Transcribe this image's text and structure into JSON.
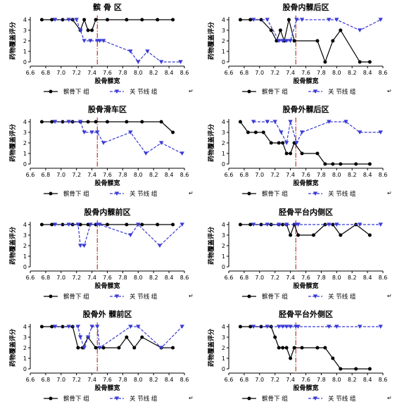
{
  "chart_data": [
    {
      "type": "line",
      "title": "髌 骨 区",
      "xlabel": "股骨髁宽",
      "ylabel": "药物覆盖评分",
      "xlim": [
        6.6,
        8.6
      ],
      "ylim": [
        0,
        4
      ],
      "xticks": [
        "6.6",
        "6.8",
        "7.0",
        "7.2",
        "7.4",
        "7.6",
        "7.8",
        "8.0",
        "8.2",
        "8.4",
        "8.6"
      ],
      "yticks": [
        "0",
        "1",
        "2",
        "3",
        "4"
      ],
      "vline_x": 7.47,
      "series": [
        {
          "name": "髌骨下 组",
          "x": [
            6.75,
            6.88,
            7.02,
            7.15,
            7.25,
            7.3,
            7.35,
            7.4,
            7.45,
            7.6,
            7.85,
            8.05,
            8.25,
            8.45
          ],
          "y": [
            4,
            4,
            4,
            4,
            3,
            4,
            3,
            3,
            4,
            4,
            4,
            4,
            4,
            4
          ]
        },
        {
          "name": "关 节线 组",
          "x": [
            6.92,
            7.1,
            7.2,
            7.25,
            7.3,
            7.38,
            7.47,
            7.5,
            7.55,
            7.9,
            8.0,
            8.12,
            8.3,
            8.55
          ],
          "y": [
            4,
            4,
            4,
            3,
            2,
            2,
            2,
            2,
            2,
            1,
            0,
            1,
            0,
            0
          ]
        }
      ]
    },
    {
      "type": "line",
      "title": "股骨内髁后区",
      "xlabel": "股骨髁宽",
      "ylabel": "药物覆盖评分",
      "xlim": [
        6.6,
        8.6
      ],
      "ylim": [
        0,
        4
      ],
      "xticks": [
        "6.6",
        "6.8",
        "7.0",
        "7.2",
        "7.4",
        "7.6",
        "7.8",
        "8.0",
        "8.2",
        "8.4",
        "8.6"
      ],
      "yticks": [
        "0",
        "1",
        "2",
        "3",
        "4"
      ],
      "vline_x": 7.47,
      "series": [
        {
          "name": "髌骨下 组",
          "x": [
            6.75,
            6.88,
            7.02,
            7.15,
            7.22,
            7.27,
            7.32,
            7.38,
            7.45,
            7.75,
            7.85,
            7.95,
            8.05,
            8.3,
            8.43
          ],
          "y": [
            4,
            4,
            4,
            3,
            2,
            3,
            2,
            4,
            2,
            2,
            0,
            2,
            3,
            0,
            0
          ]
        },
        {
          "name": "关 节线 组",
          "x": [
            6.92,
            7.1,
            7.25,
            7.3,
            7.35,
            7.4,
            7.48,
            7.55,
            7.9,
            8.0,
            8.3,
            8.57
          ],
          "y": [
            4,
            4,
            2,
            2,
            2,
            2,
            4,
            4,
            4,
            4,
            3,
            4
          ]
        }
      ]
    },
    {
      "type": "line",
      "title": "股骨滑车区",
      "xlabel": "股骨髁宽",
      "ylabel": "药物覆盖评分",
      "xlim": [
        6.6,
        8.6
      ],
      "ylim": [
        0,
        4
      ],
      "xticks": [
        "6.6",
        "6.8",
        "7.0",
        "7.2",
        "7.4",
        "7.6",
        "7.8",
        "8.0",
        "8.2",
        "8.4",
        "8.6"
      ],
      "yticks": [
        "0",
        "1",
        "2",
        "3",
        "4"
      ],
      "vline_x": 7.47,
      "series": [
        {
          "name": "髌骨下 组",
          "x": [
            6.75,
            6.88,
            7.02,
            7.15,
            7.25,
            7.35,
            7.45,
            7.6,
            7.85,
            8.05,
            8.3,
            8.45
          ],
          "y": [
            4,
            4,
            4,
            4,
            4,
            4,
            4,
            4,
            4,
            4,
            4,
            3
          ]
        },
        {
          "name": "关 节线 组",
          "x": [
            6.92,
            7.1,
            7.25,
            7.3,
            7.4,
            7.47,
            7.55,
            7.9,
            8.1,
            8.3,
            8.57
          ],
          "y": [
            4,
            4,
            4,
            3,
            3,
            3,
            2,
            3,
            1,
            2,
            1
          ]
        }
      ]
    },
    {
      "type": "line",
      "title": "股骨外髁后区",
      "xlabel": "股骨髁宽",
      "ylabel": "药物覆盖评分",
      "xlim": [
        6.6,
        8.6
      ],
      "ylim": [
        0,
        4
      ],
      "xticks": [
        "6.6",
        "6.8",
        "7.0",
        "7.2",
        "7.4",
        "7.6",
        "7.8",
        "8.0",
        "8.2",
        "8.4",
        "8.6"
      ],
      "yticks": [
        "0",
        "1",
        "2",
        "3",
        "4"
      ],
      "vline_x": 7.47,
      "series": [
        {
          "name": "髌骨下 组",
          "x": [
            6.75,
            6.85,
            6.95,
            7.05,
            7.15,
            7.25,
            7.3,
            7.35,
            7.4,
            7.45,
            7.55,
            7.75,
            7.85,
            7.95,
            8.05,
            8.25,
            8.43
          ],
          "y": [
            4,
            3,
            3,
            3,
            2,
            2,
            2,
            1,
            1,
            2,
            1,
            1,
            0,
            0,
            0,
            0,
            0
          ]
        },
        {
          "name": "关 节线 组",
          "x": [
            6.92,
            7.1,
            7.2,
            7.28,
            7.35,
            7.4,
            7.48,
            7.55,
            7.9,
            8.12,
            8.3,
            8.57
          ],
          "y": [
            4,
            4,
            4,
            3,
            2,
            4,
            2,
            3,
            4,
            4,
            3,
            3
          ]
        }
      ]
    },
    {
      "type": "line",
      "title": "股骨内髁前区",
      "xlabel": "股骨髁宽",
      "ylabel": "药物覆盖评分",
      "xlim": [
        6.6,
        8.6
      ],
      "ylim": [
        0,
        4
      ],
      "xticks": [
        "6.6",
        "6.8",
        "7.0",
        "7.2",
        "7.4",
        "7.6",
        "7.8",
        "8.0",
        "8.2",
        "8.4",
        "8.6"
      ],
      "yticks": [
        "0",
        "1",
        "2",
        "3",
        "4"
      ],
      "vline_x": 7.47,
      "series": [
        {
          "name": "髌骨下 组",
          "x": [
            6.75,
            6.88,
            7.02,
            7.15,
            7.25,
            7.35,
            7.45,
            7.6,
            7.85,
            8.05,
            8.25,
            8.45
          ],
          "y": [
            4,
            4,
            4,
            4,
            4,
            4,
            4,
            4,
            4,
            4,
            4,
            4
          ]
        },
        {
          "name": "关 节线 组",
          "x": [
            6.92,
            7.1,
            7.22,
            7.25,
            7.3,
            7.38,
            7.47,
            7.5,
            7.9,
            8.0,
            8.28,
            8.57
          ],
          "y": [
            4,
            4,
            4,
            2,
            2,
            4,
            4,
            4,
            3,
            4,
            2,
            4
          ]
        }
      ]
    },
    {
      "type": "line",
      "title": "胫骨平台内侧区",
      "xlabel": "股骨髁宽",
      "ylabel": "药物覆盖评分",
      "xlim": [
        6.6,
        8.6
      ],
      "ylim": [
        0,
        4
      ],
      "xticks": [
        "6.6",
        "6.8",
        "7.0",
        "7.2",
        "7.4",
        "7.6",
        "7.8",
        "8.0",
        "8.2",
        "8.4",
        "8.6"
      ],
      "yticks": [
        "0",
        "1",
        "2",
        "3",
        "4"
      ],
      "vline_x": 7.47,
      "series": [
        {
          "name": "髌骨下 组",
          "x": [
            6.75,
            6.88,
            7.02,
            7.15,
            7.25,
            7.3,
            7.35,
            7.4,
            7.45,
            7.5,
            7.7,
            7.85,
            7.95,
            8.05,
            8.25,
            8.43
          ],
          "y": [
            4,
            4,
            4,
            4,
            4,
            4,
            4,
            3,
            4,
            3,
            3,
            4,
            4,
            3,
            4,
            3
          ]
        },
        {
          "name": "关 节线 组",
          "x": [
            6.92,
            7.1,
            7.25,
            7.35,
            7.47,
            7.5,
            7.9,
            8.0,
            8.3,
            8.57
          ],
          "y": [
            4,
            4,
            4,
            4,
            4,
            4,
            4,
            4,
            4,
            4
          ]
        }
      ]
    },
    {
      "type": "line",
      "title": "股骨外 髁前区",
      "xlabel": "股骨髁宽",
      "ylabel": "药物覆盖评分",
      "xlim": [
        6.6,
        8.6
      ],
      "ylim": [
        0,
        4
      ],
      "xticks": [
        "6.6",
        "6.8",
        "7.0",
        "7.2",
        "7.4",
        "7.6",
        "7.8",
        "8.0",
        "8.2",
        "8.4",
        "8.6"
      ],
      "yticks": [
        "0",
        "1",
        "2",
        "3",
        "4"
      ],
      "vline_x": 7.47,
      "series": [
        {
          "name": "髌骨下 组",
          "x": [
            6.75,
            6.88,
            7.02,
            7.15,
            7.22,
            7.28,
            7.35,
            7.45,
            7.55,
            7.75,
            7.85,
            7.95,
            8.05,
            8.3,
            8.45
          ],
          "y": [
            4,
            4,
            4,
            4,
            2,
            2,
            3,
            2,
            2,
            2,
            3,
            2,
            3,
            2,
            2
          ]
        },
        {
          "name": "关 节线 组",
          "x": [
            6.92,
            7.1,
            7.22,
            7.25,
            7.3,
            7.35,
            7.4,
            7.47,
            7.5,
            7.9,
            8.0,
            8.3,
            8.57
          ],
          "y": [
            4,
            4,
            4,
            3,
            2,
            3,
            4,
            4,
            2,
            4,
            4,
            2,
            4
          ]
        }
      ]
    },
    {
      "type": "line",
      "title": "胫骨平台外侧区",
      "xlabel": "股骨髁宽",
      "ylabel": "药物覆盖评分",
      "xlim": [
        6.6,
        8.6
      ],
      "ylim": [
        0,
        4
      ],
      "xticks": [
        "6.6",
        "6.8",
        "7.0",
        "7.2",
        "7.4",
        "7.6",
        "7.8",
        "8.0",
        "8.2",
        "8.4",
        "8.6"
      ],
      "yticks": [
        "0",
        "1",
        "2",
        "3",
        "4"
      ],
      "vline_x": 7.47,
      "series": [
        {
          "name": "髌骨下 组",
          "x": [
            6.75,
            6.88,
            7.02,
            7.15,
            7.2,
            7.25,
            7.3,
            7.35,
            7.4,
            7.45,
            7.55,
            7.75,
            7.85,
            7.95,
            8.05,
            8.25,
            8.43
          ],
          "y": [
            4,
            4,
            4,
            4,
            3,
            2,
            2,
            2,
            1,
            2,
            2,
            2,
            2,
            1,
            0,
            0,
            0
          ]
        },
        {
          "name": "关 节线 组",
          "x": [
            6.92,
            7.1,
            7.25,
            7.3,
            7.35,
            7.4,
            7.47,
            7.5,
            7.9,
            8.0,
            8.3,
            8.57
          ],
          "y": [
            4,
            4,
            4,
            4,
            4,
            4,
            4,
            4,
            4,
            4,
            4,
            4
          ]
        }
      ]
    }
  ],
  "colors": {
    "series0": "#000000",
    "series1": "#3a3ad6",
    "vline": "#c0392b"
  },
  "margin_mark": "↵"
}
